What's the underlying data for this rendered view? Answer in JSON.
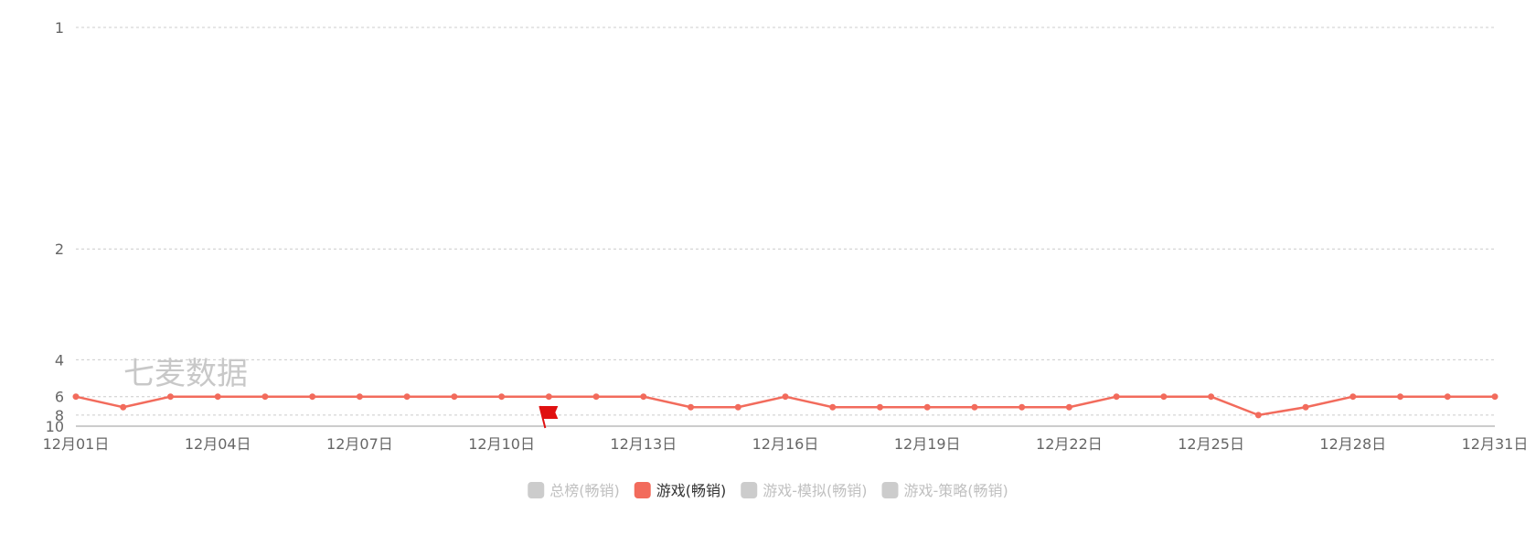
{
  "watermark": "七麦数据",
  "colors": {
    "active": "#f26b5c",
    "inactive": "#cccccc",
    "active_text": "#333333",
    "inactive_text": "#c0c0c0",
    "flag": "#e01010"
  },
  "icons": [
    "flag-icon"
  ],
  "legend": [
    {
      "label": "总榜(畅销)",
      "active": false
    },
    {
      "label": "游戏(畅销)",
      "active": true
    },
    {
      "label": "游戏-模拟(畅销)",
      "active": false
    },
    {
      "label": "游戏-策略(畅销)",
      "active": false
    }
  ],
  "chart_data": {
    "type": "line",
    "y_scale": "reciprocal",
    "y_inverted": true,
    "y_ticks": [
      1,
      2,
      4,
      6,
      8,
      10
    ],
    "ylim": [
      1,
      10
    ],
    "x": [
      "12月01日",
      "12月02日",
      "12月03日",
      "12月04日",
      "12月05日",
      "12月06日",
      "12月07日",
      "12月08日",
      "12月09日",
      "12月10日",
      "12月11日",
      "12月12日",
      "12月13日",
      "12月14日",
      "12月15日",
      "12月16日",
      "12月17日",
      "12月18日",
      "12月19日",
      "12月20日",
      "12月21日",
      "12月22日",
      "12月23日",
      "12月24日",
      "12月25日",
      "12月26日",
      "12月27日",
      "12月28日",
      "12月29日",
      "12月30日",
      "12月31日"
    ],
    "x_tick_labels": [
      "12月01日",
      "12月04日",
      "12月07日",
      "12月10日",
      "12月13日",
      "12月16日",
      "12月19日",
      "12月22日",
      "12月25日",
      "12月28日",
      "12月31日"
    ],
    "series": [
      {
        "name": "游戏(畅销)",
        "values": [
          6,
          7,
          6,
          6,
          6,
          6,
          6,
          6,
          6,
          6,
          6,
          6,
          6,
          7,
          7,
          6,
          7,
          7,
          7,
          7,
          7,
          7,
          6,
          6,
          6,
          8,
          7,
          6,
          6,
          6,
          6
        ]
      }
    ],
    "grid": true,
    "markers": [
      {
        "type": "flag",
        "x": "12月11日"
      }
    ]
  }
}
